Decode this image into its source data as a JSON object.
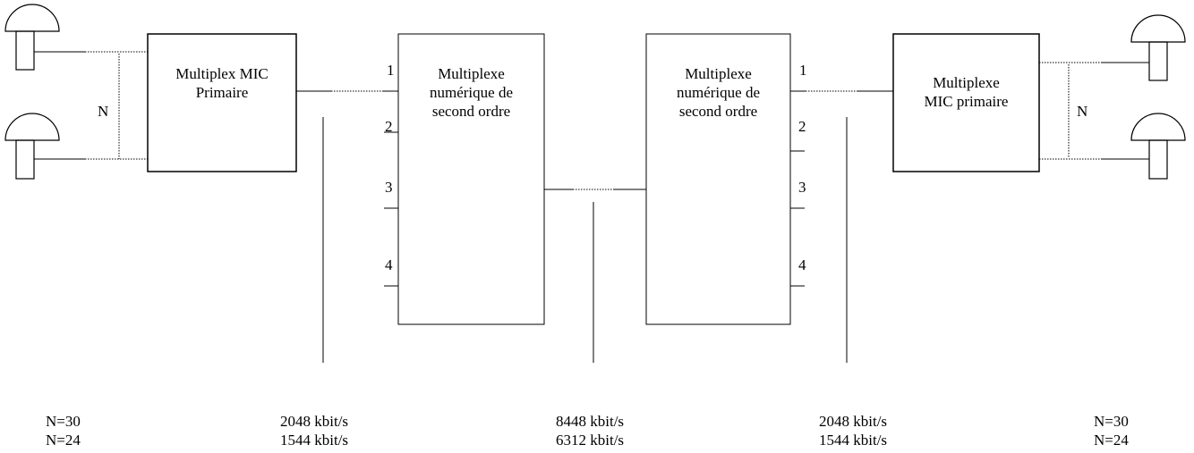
{
  "diagram": {
    "left_primary": {
      "line1": "Multiplex MIC",
      "line2": "Primaire"
    },
    "left_secondary": {
      "line1": "Multiplexe",
      "line2": "numérique de",
      "line3": "second ordre"
    },
    "right_secondary": {
      "line1": "Multiplexe",
      "line2": "numérique de",
      "line3": "second ordre"
    },
    "right_primary": {
      "line1": "Multiplexe",
      "line2": "MIC primaire"
    },
    "left_ports": [
      "1",
      "2",
      "3",
      "4"
    ],
    "right_ports": [
      "1",
      "2",
      "3",
      "4"
    ],
    "n_label_left": "N",
    "n_label_right": "N"
  },
  "footer": {
    "left_n": {
      "line1": "N=30",
      "line2": "N=24"
    },
    "left_rate": {
      "line1": "2048 kbit/s",
      "line2": "1544 kbit/s"
    },
    "center_rate": {
      "line1": "8448 kbit/s",
      "line2": "6312 kbit/s"
    },
    "right_rate": {
      "line1": "2048 kbit/s",
      "line2": "1544 kbit/s"
    },
    "right_n": {
      "line1": "N=30",
      "line2": "N=24"
    }
  }
}
